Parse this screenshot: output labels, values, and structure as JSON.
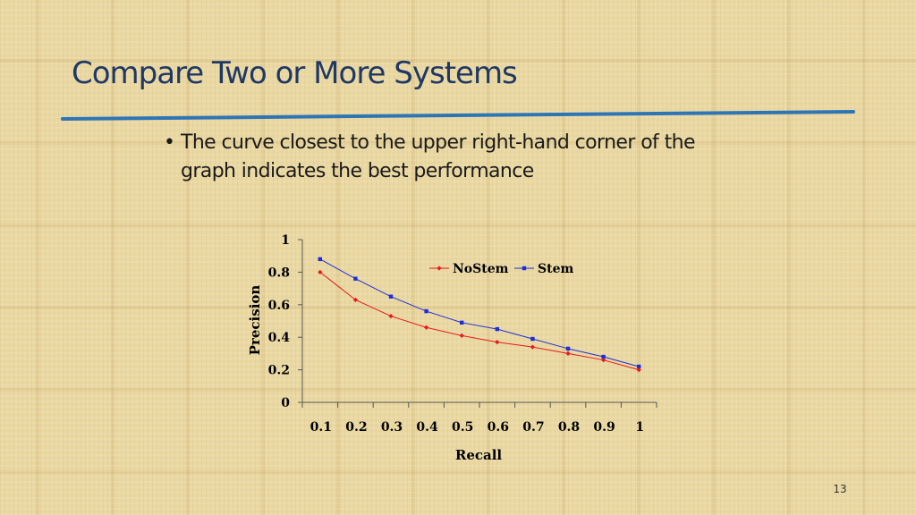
{
  "slide": {
    "title": "Compare Two or More Systems",
    "bullets": [
      "The curve closest to the upper right-hand corner of the graph indicates the best performance"
    ],
    "slide_number": "13"
  },
  "chart_data": {
    "type": "line",
    "xlabel": "Recall",
    "ylabel": "Precision",
    "x": [
      0.1,
      0.2,
      0.3,
      0.4,
      0.5,
      0.6,
      0.7,
      0.8,
      0.9,
      1
    ],
    "x_tick_labels": [
      "0.1",
      "0.2",
      "0.3",
      "0.4",
      "0.5",
      "0.6",
      "0.7",
      "0.8",
      "0.9",
      "1"
    ],
    "y_tick_labels": [
      "0",
      "0.2",
      "0.4",
      "0.6",
      "0.8",
      "1"
    ],
    "ylim": [
      0,
      1
    ],
    "legend_position": "top-right",
    "grid": false,
    "series": [
      {
        "name": "NoStem",
        "color": "#e8191b",
        "marker": "diamond",
        "values": [
          0.8,
          0.63,
          0.53,
          0.46,
          0.41,
          0.37,
          0.34,
          0.3,
          0.26,
          0.2
        ]
      },
      {
        "name": "Stem",
        "color": "#1f2dd6",
        "marker": "square",
        "values": [
          0.88,
          0.76,
          0.65,
          0.56,
          0.49,
          0.45,
          0.39,
          0.33,
          0.28,
          0.22
        ]
      }
    ]
  }
}
